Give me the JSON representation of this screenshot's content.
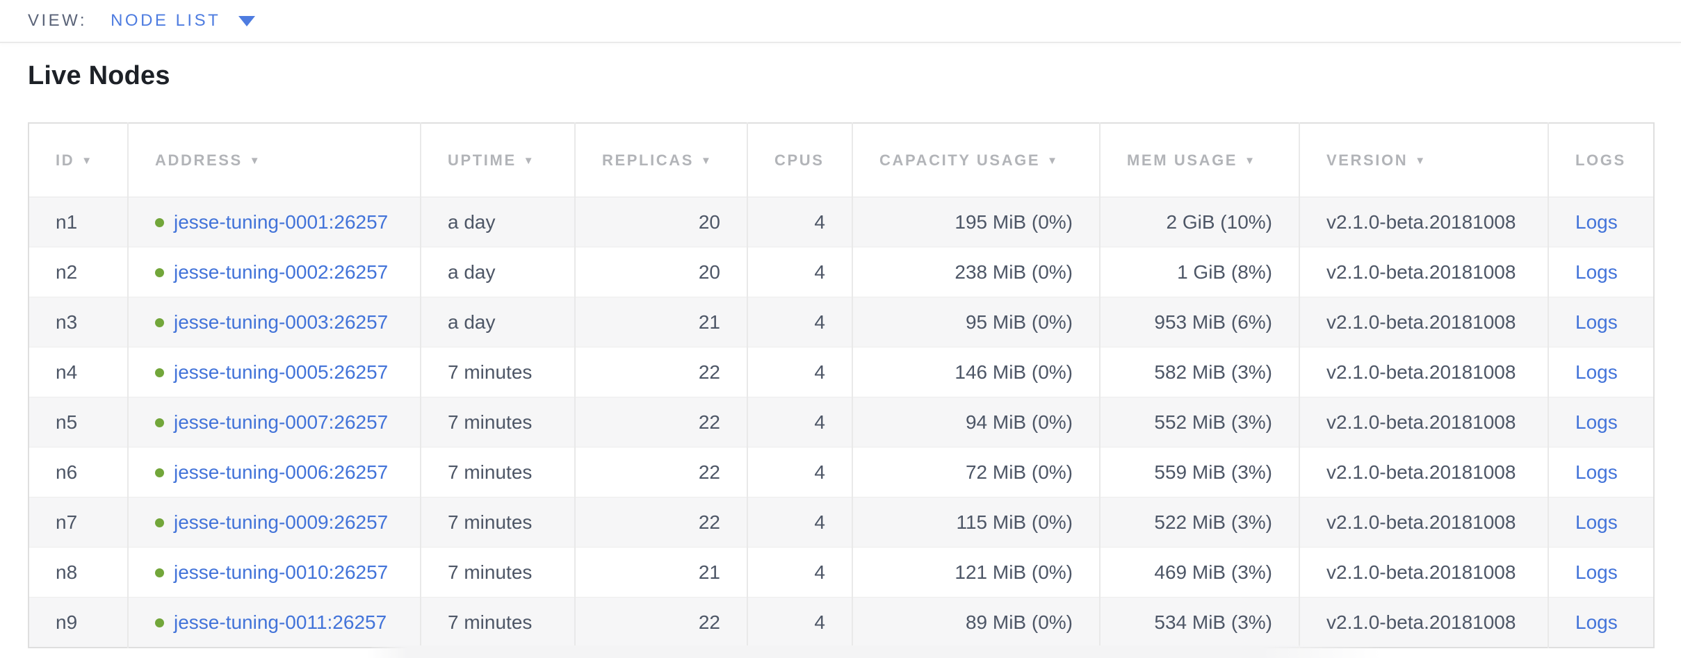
{
  "view_bar": {
    "label": "VIEW:",
    "selected": "NODE LIST"
  },
  "page": {
    "title": "Live Nodes"
  },
  "colors": {
    "link_blue": "#4273d9",
    "view_selector_blue": "#4e7ce0",
    "status_live_green": "#72a63a",
    "header_gray": "#b2b4b8",
    "cell_text": "#4d5666",
    "row_stripe": "#f6f6f7",
    "table_border": "#dfdfdf"
  },
  "table": {
    "sort_icon": "▼",
    "columns": [
      {
        "key": "id",
        "label": "ID",
        "sortable": true,
        "align": "left"
      },
      {
        "key": "address",
        "label": "ADDRESS",
        "sortable": true,
        "align": "left"
      },
      {
        "key": "uptime",
        "label": "UPTIME",
        "sortable": true,
        "align": "left"
      },
      {
        "key": "replicas",
        "label": "REPLICAS",
        "sortable": true,
        "align": "right"
      },
      {
        "key": "cpus",
        "label": "CPUS",
        "sortable": false,
        "align": "right"
      },
      {
        "key": "capacity",
        "label": "CAPACITY USAGE",
        "sortable": true,
        "align": "right"
      },
      {
        "key": "mem",
        "label": "MEM USAGE",
        "sortable": true,
        "align": "right"
      },
      {
        "key": "version",
        "label": "VERSION",
        "sortable": true,
        "align": "left"
      },
      {
        "key": "logs",
        "label": "LOGS",
        "sortable": false,
        "align": "left"
      }
    ],
    "rows": [
      {
        "id": "n1",
        "status": "live",
        "address": "jesse-tuning-0001:26257",
        "uptime": "a day",
        "replicas": "20",
        "cpus": "4",
        "capacity": "195 MiB (0%)",
        "mem": "2 GiB (10%)",
        "version": "v2.1.0-beta.20181008",
        "logs": "Logs"
      },
      {
        "id": "n2",
        "status": "live",
        "address": "jesse-tuning-0002:26257",
        "uptime": "a day",
        "replicas": "20",
        "cpus": "4",
        "capacity": "238 MiB (0%)",
        "mem": "1 GiB (8%)",
        "version": "v2.1.0-beta.20181008",
        "logs": "Logs"
      },
      {
        "id": "n3",
        "status": "live",
        "address": "jesse-tuning-0003:26257",
        "uptime": "a day",
        "replicas": "21",
        "cpus": "4",
        "capacity": "95 MiB (0%)",
        "mem": "953 MiB (6%)",
        "version": "v2.1.0-beta.20181008",
        "logs": "Logs"
      },
      {
        "id": "n4",
        "status": "live",
        "address": "jesse-tuning-0005:26257",
        "uptime": "7 minutes",
        "replicas": "22",
        "cpus": "4",
        "capacity": "146 MiB (0%)",
        "mem": "582 MiB (3%)",
        "version": "v2.1.0-beta.20181008",
        "logs": "Logs"
      },
      {
        "id": "n5",
        "status": "live",
        "address": "jesse-tuning-0007:26257",
        "uptime": "7 minutes",
        "replicas": "22",
        "cpus": "4",
        "capacity": "94 MiB (0%)",
        "mem": "552 MiB (3%)",
        "version": "v2.1.0-beta.20181008",
        "logs": "Logs"
      },
      {
        "id": "n6",
        "status": "live",
        "address": "jesse-tuning-0006:26257",
        "uptime": "7 minutes",
        "replicas": "22",
        "cpus": "4",
        "capacity": "72 MiB (0%)",
        "mem": "559 MiB (3%)",
        "version": "v2.1.0-beta.20181008",
        "logs": "Logs"
      },
      {
        "id": "n7",
        "status": "live",
        "address": "jesse-tuning-0009:26257",
        "uptime": "7 minutes",
        "replicas": "22",
        "cpus": "4",
        "capacity": "115 MiB (0%)",
        "mem": "522 MiB (3%)",
        "version": "v2.1.0-beta.20181008",
        "logs": "Logs"
      },
      {
        "id": "n8",
        "status": "live",
        "address": "jesse-tuning-0010:26257",
        "uptime": "7 minutes",
        "replicas": "21",
        "cpus": "4",
        "capacity": "121 MiB (0%)",
        "mem": "469 MiB (3%)",
        "version": "v2.1.0-beta.20181008",
        "logs": "Logs"
      },
      {
        "id": "n9",
        "status": "live",
        "address": "jesse-tuning-0011:26257",
        "uptime": "7 minutes",
        "replicas": "22",
        "cpus": "4",
        "capacity": "89 MiB (0%)",
        "mem": "534 MiB (3%)",
        "version": "v2.1.0-beta.20181008",
        "logs": "Logs"
      }
    ]
  }
}
